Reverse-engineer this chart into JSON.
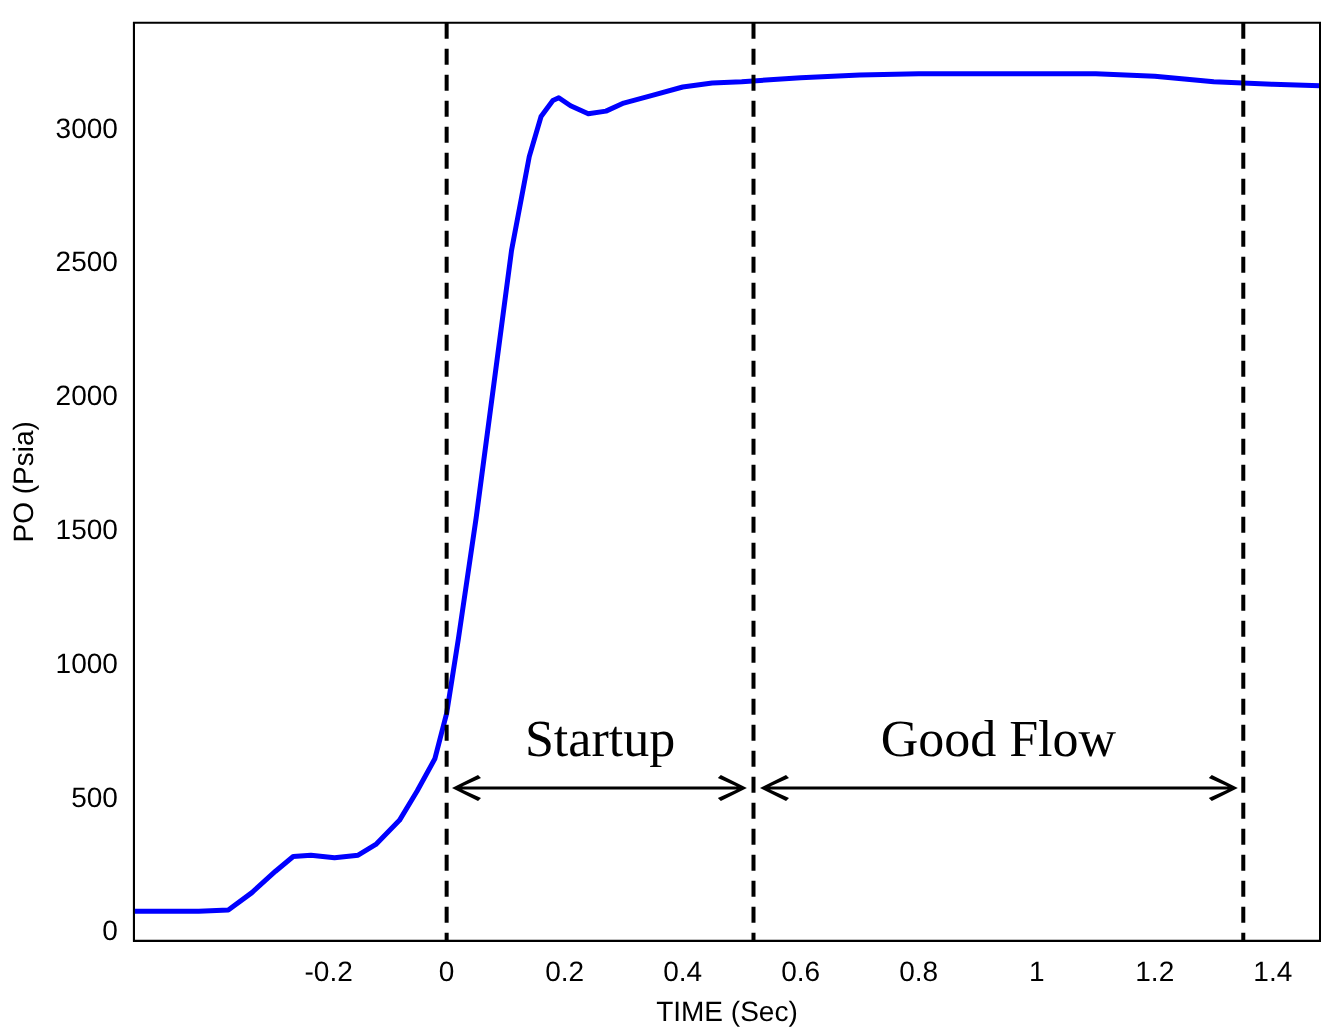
{
  "chart_data": {
    "type": "line",
    "xlabel": "TIME (Sec)",
    "ylabel": "PO (Psia)",
    "xlim": [
      -0.53,
      1.48
    ],
    "ylim": [
      -30,
      3400
    ],
    "xticks": [
      -0.2,
      0,
      0.2,
      0.4,
      0.6,
      0.8,
      1,
      1.2,
      1.4
    ],
    "yticks": [
      0,
      500,
      1000,
      1500,
      2000,
      2500,
      3000
    ],
    "grid": false,
    "legend": false,
    "marker": "none",
    "line_style": "solid",
    "series": [
      {
        "color": "#0000ff",
        "x": [
          -0.53,
          -0.42,
          -0.37,
          -0.33,
          -0.29,
          -0.26,
          -0.23,
          -0.19,
          -0.15,
          -0.12,
          -0.08,
          -0.05,
          -0.02,
          0,
          0.02,
          0.05,
          0.08,
          0.11,
          0.14,
          0.16,
          0.18,
          0.19,
          0.21,
          0.24,
          0.27,
          0.3,
          0.35,
          0.4,
          0.45,
          0.5,
          0.6,
          0.7,
          0.8,
          0.9,
          1,
          1.1,
          1.2,
          1.3,
          1.4,
          1.48
        ],
        "values": [
          80,
          80,
          85,
          150,
          230,
          285,
          290,
          280,
          290,
          330,
          420,
          530,
          650,
          820,
          1100,
          1550,
          2050,
          2550,
          2900,
          3050,
          3110,
          3120,
          3090,
          3060,
          3070,
          3100,
          3130,
          3160,
          3175,
          3180,
          3195,
          3205,
          3210,
          3210,
          3210,
          3210,
          3200,
          3180,
          3170,
          3165
        ]
      }
    ],
    "ref_lines": [
      {
        "axis": "x",
        "value": 0,
        "color": "#000000",
        "line_style": "dashed"
      },
      {
        "axis": "x",
        "value": 0.52,
        "color": "#000000",
        "line_style": "dashed"
      },
      {
        "axis": "x",
        "value": 1.35,
        "color": "#000000",
        "line_style": "dashed"
      }
    ],
    "annotations": [
      "Startup",
      "Good Flow"
    ]
  }
}
